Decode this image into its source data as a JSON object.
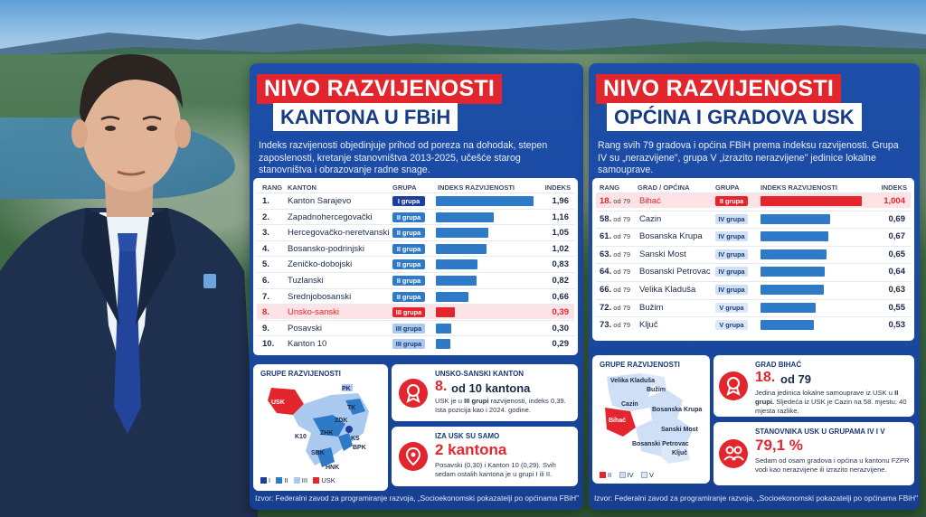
{
  "left_panel": {
    "title_line1": "NIVO RAZVIJENOSTI",
    "title_line2": "KANTONA U FBiH",
    "intro": "Indeks razvijenosti objedinjuje prihod od poreza na dohodak, stepen zaposlenosti, kretanje stanovništva 2013-2025, učešće starog stanovništva i obrazovanje radne snage.",
    "headers": {
      "rank": "RANG",
      "name": "KANTON",
      "group": "GRUPA",
      "index_bar": "INDEKS RAZVIJENOSTI",
      "index": "INDEKS"
    },
    "rows": [
      {
        "rank": "1.",
        "name": "Kanton Sarajevo",
        "group": "I grupa",
        "index": "1,96",
        "value": 1.96
      },
      {
        "rank": "2.",
        "name": "Zapadnohercegovački",
        "group": "II grupa",
        "index": "1,16",
        "value": 1.16
      },
      {
        "rank": "3.",
        "name": "Hercegovačko-neretvanski",
        "group": "II grupa",
        "index": "1,05",
        "value": 1.05
      },
      {
        "rank": "4.",
        "name": "Bosansko-podrinjski",
        "group": "II grupa",
        "index": "1,02",
        "value": 1.02
      },
      {
        "rank": "5.",
        "name": "Zeničko-dobojski",
        "group": "II grupa",
        "index": "0,83",
        "value": 0.83
      },
      {
        "rank": "6.",
        "name": "Tuzlanski",
        "group": "II grupa",
        "index": "0,82",
        "value": 0.82
      },
      {
        "rank": "7.",
        "name": "Srednjobosanski",
        "group": "II grupa",
        "index": "0,66",
        "value": 0.66
      },
      {
        "rank": "8.",
        "name": "Unsko-sanski",
        "group": "III grupa",
        "index": "0,39",
        "value": 0.39
      },
      {
        "rank": "9.",
        "name": "Posavski",
        "group": "III grupa",
        "index": "0,30",
        "value": 0.3
      },
      {
        "rank": "10.",
        "name": "Kanton 10",
        "group": "III grupa",
        "index": "0,29",
        "value": 0.29
      }
    ],
    "map_box": {
      "title": "GRUPE RAZVIJENOSTI",
      "labels": {
        "usk": "USK",
        "ks": "KS",
        "zhk": "ZHK",
        "zdk": "ZDK",
        "tk": "TK",
        "k10": "K10",
        "hnk": "HNK",
        "sbk": "SBK",
        "bpk": "BPK",
        "pk": "PK"
      },
      "legend": [
        "I",
        "II",
        "III",
        "USK"
      ]
    },
    "info1": {
      "title": "UNSKO-SANSKI KANTON",
      "big_num": "8.",
      "big_text": "od 10 kantona",
      "text_pre": "USK je u ",
      "text_bold": "III grupi",
      "text_post": " razvijenosti, indeks 0,39. Ista pozicija kao i 2024. godine."
    },
    "info2": {
      "title": "IZA USK SU SAMO",
      "big": "2 kantona",
      "text": "Posavski (0,30) i Kanton 10 (0,29). Svih sedam ostalih kantona je u grupi I ili II."
    },
    "source": "Izvor: Federalni zavod za programiranje razvoja, „Socioekonomski pokazatelji po općinama FBiH\""
  },
  "right_panel": {
    "title_line1": "NIVO RAZVIJENOSTI",
    "title_line2": "OPĆINA I GRADOVA USK",
    "intro": "Rang svih 79 gradova i općina FBiH prema indeksu razvijenosti. Grupa IV su „nerazvijene\", grupa V „izrazito nerazvijene\" jedinice lokalne samouprave.",
    "headers": {
      "rank": "RANG",
      "name": "GRAD / OPĆINA",
      "group": "GRUPA",
      "index_bar": "INDEKS RAZVIJENOSTI",
      "index": "INDEKS"
    },
    "rows": [
      {
        "rank": "18.",
        "of": "od 79",
        "name": "Bihać",
        "group": "II grupa",
        "index": "1,004",
        "value": 1.004
      },
      {
        "rank": "58.",
        "of": "od 79",
        "name": "Cazin",
        "group": "IV grupa",
        "index": "0,69",
        "value": 0.69
      },
      {
        "rank": "61.",
        "of": "od 79",
        "name": "Bosanska Krupa",
        "group": "IV grupa",
        "index": "0,67",
        "value": 0.67
      },
      {
        "rank": "63.",
        "of": "od 79",
        "name": "Sanski Most",
        "group": "IV grupa",
        "index": "0,65",
        "value": 0.65
      },
      {
        "rank": "64.",
        "of": "od 79",
        "name": "Bosanski Petrovac",
        "group": "IV grupa",
        "index": "0,64",
        "value": 0.64
      },
      {
        "rank": "66.",
        "of": "od 79",
        "name": "Velika Kladuša",
        "group": "IV grupa",
        "index": "0,63",
        "value": 0.63
      },
      {
        "rank": "72.",
        "of": "od 79",
        "name": "Bužim",
        "group": "V grupa",
        "index": "0,55",
        "value": 0.55
      },
      {
        "rank": "73.",
        "of": "od 79",
        "name": "Ključ",
        "group": "V grupa",
        "index": "0,53",
        "value": 0.53
      }
    ],
    "map_box": {
      "title": "GRUPE RAZVIJENOSTI",
      "labels": {
        "vk": "Velika Kladuša",
        "buzim": "Bužim",
        "cazin": "Cazin",
        "bihac": "Bihać",
        "bkrupa": "Bosanska Krupa",
        "smost": "Sanski Most",
        "bpetrovac": "Bosanski Petrovac",
        "kljuc": "Ključ"
      },
      "legend": [
        "II",
        "IV",
        "V"
      ]
    },
    "info1": {
      "title": "GRAD BIHAĆ",
      "big_num": "18.",
      "big_text": "od 79",
      "text_pre": "Jedina jedinica lokalne samouprave iz USK u ",
      "text_bold": "II grupi.",
      "text_post": " Sljedeća iz USK je Cazin na 58. mjestu: 40 mjesta razlike."
    },
    "info2": {
      "title": "STANOVNIKA USK U GRUPAMA IV I V",
      "big": "79,1 %",
      "text": "Sedam od osam gradova i općina u kantonu FZPR vodi kao nerazvijene ili izrazito nerazvijene."
    },
    "source": "Izvor: Federalni zavod za programiranje razvoja, „Socioekonomski pokazatelji po općinama FBiH\""
  },
  "colors": {
    "red": "#e3262d",
    "blue": "#1d4fa8",
    "bar": "#2f7ac7"
  }
}
